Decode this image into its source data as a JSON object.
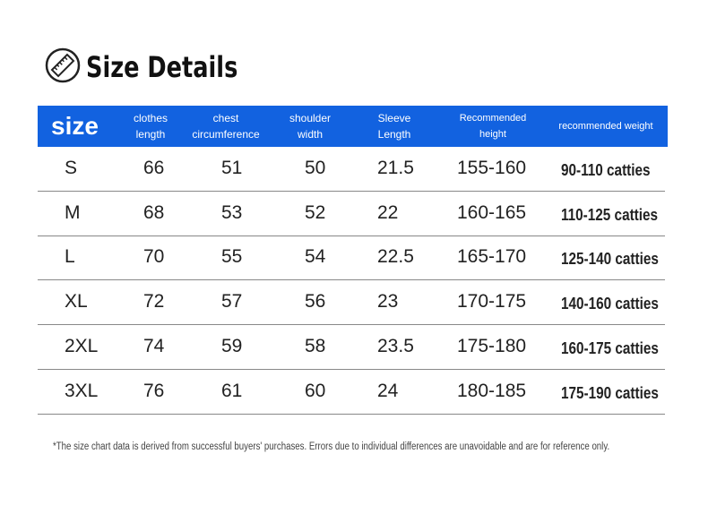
{
  "header": {
    "title": "Size Details"
  },
  "table": {
    "columns": [
      "size",
      "clothes length",
      "chest circumference",
      "shoulder width",
      "Sleeve Length",
      "Recommended height",
      "recommended weight"
    ],
    "rows": [
      [
        "S",
        "66",
        "51",
        "50",
        "21.5",
        "155-160",
        "90-110 catties"
      ],
      [
        "M",
        "68",
        "53",
        "52",
        "22",
        "160-165",
        "110-125 catties"
      ],
      [
        "L",
        "70",
        "55",
        "54",
        "22.5",
        "165-170",
        "125-140 catties"
      ],
      [
        "XL",
        "72",
        "57",
        "56",
        "23",
        "170-175",
        "140-160 catties"
      ],
      [
        "2XL",
        "74",
        "59",
        "58",
        "23.5",
        "175-180",
        "160-175 catties"
      ],
      [
        "3XL",
        "76",
        "61",
        "60",
        "24",
        "180-185",
        "175-190 catties"
      ]
    ]
  },
  "footnote": "*The size chart data is derived from successful buyers' purchases. Errors due to individual differences are unavoidable and are for reference only."
}
